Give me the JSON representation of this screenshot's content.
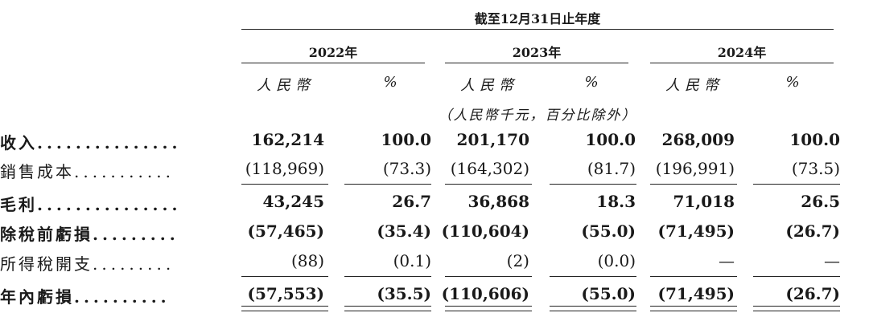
{
  "header": {
    "period": "截至12月31日止年度",
    "years": [
      "2022年",
      "2023年",
      "2024年"
    ],
    "unit_label": "人民幣",
    "pct_label": "%",
    "note": "（人民幣千元，百分比除外）"
  },
  "rows": [
    {
      "label": "收入",
      "dots": "...............",
      "bold": true,
      "values": [
        "162,214",
        "100.0",
        "201,170",
        "100.0",
        "268,009",
        "100.0"
      ]
    },
    {
      "label": "銷售成本",
      "dots": "...........",
      "bold": false,
      "values": [
        "(118,969)",
        "(73.3)",
        "(164,302)",
        "(81.7)",
        "(196,991)",
        "(73.5)"
      ]
    },
    {
      "label": "毛利",
      "dots": "...............",
      "bold": true,
      "values": [
        "43,245",
        "26.7",
        "36,868",
        "18.3",
        "71,018",
        "26.5"
      ]
    },
    {
      "label": "除稅前虧損",
      "dots": ".........",
      "bold": true,
      "values": [
        "(57,465)",
        "(35.4)",
        "(110,604)",
        "(55.0)",
        "(71,495)",
        "(26.7)"
      ]
    },
    {
      "label": "所得稅開支",
      "dots": ".........",
      "bold": false,
      "values": [
        "(88)",
        "(0.1)",
        "(2)",
        "(0.0)",
        "—",
        "—"
      ]
    },
    {
      "label": "年內虧損",
      "dots": "..........",
      "bold": true,
      "values": [
        "(57,553)",
        "(35.5)",
        "(110,606)",
        "(55.0)",
        "(71,495)",
        "(26.7)"
      ]
    }
  ]
}
